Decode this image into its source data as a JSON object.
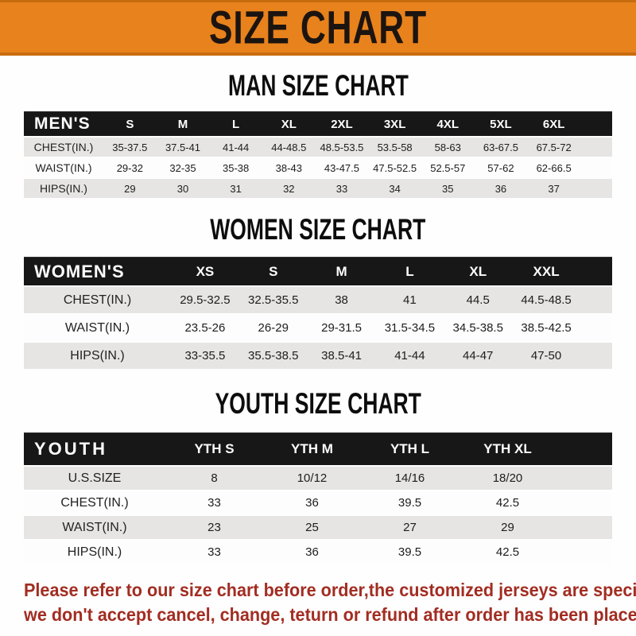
{
  "banner": {
    "title": "SIZE CHART"
  },
  "colors": {
    "banner_orange": "#e8821c",
    "table_header_black": "#171717",
    "row_gray": "#e6e5e3",
    "row_white": "#fdfdfd",
    "footer_red": "#a22d22"
  },
  "sections": [
    {
      "id": "men",
      "title": "MAN SIZE CHART",
      "corner_label": "MEN'S",
      "columns": [
        "S",
        "M",
        "L",
        "XL",
        "2XL",
        "3XL",
        "4XL",
        "5XL",
        "6XL"
      ],
      "rows": [
        {
          "label": "CHEST(IN.)",
          "values": [
            "35-37.5",
            "37.5-41",
            "41-44",
            "44-48.5",
            "48.5-53.5",
            "53.5-58",
            "58-63",
            "63-67.5",
            "67.5-72"
          ]
        },
        {
          "label": "WAIST(IN.)",
          "values": [
            "29-32",
            "32-35",
            "35-38",
            "38-43",
            "43-47.5",
            "47.5-52.5",
            "52.5-57",
            "57-62",
            "62-66.5"
          ]
        },
        {
          "label": "HIPS(IN.)",
          "values": [
            "29",
            "30",
            "31",
            "32",
            "33",
            "34",
            "35",
            "36",
            "37"
          ]
        }
      ]
    },
    {
      "id": "women",
      "title": "WOMEN SIZE CHART",
      "corner_label": "WOMEN'S",
      "columns": [
        "XS",
        "S",
        "M",
        "L",
        "XL",
        "XXL"
      ],
      "rows": [
        {
          "label": "CHEST(IN.)",
          "values": [
            "29.5-32.5",
            "32.5-35.5",
            "38",
            "41",
            "44.5",
            "44.5-48.5"
          ]
        },
        {
          "label": "WAIST(IN.)",
          "values": [
            "23.5-26",
            "26-29",
            "29-31.5",
            "31.5-34.5",
            "34.5-38.5",
            "38.5-42.5"
          ]
        },
        {
          "label": "HIPS(IN.)",
          "values": [
            "33-35.5",
            "35.5-38.5",
            "38.5-41",
            "41-44",
            "44-47",
            "47-50"
          ]
        }
      ]
    },
    {
      "id": "youth",
      "title": "YOUTH SIZE CHART",
      "corner_label": "YOUTH",
      "columns": [
        "YTH S",
        "YTH M",
        "YTH L",
        "YTH XL"
      ],
      "rows": [
        {
          "label": "U.S.SIZE",
          "values": [
            "8",
            "10/12",
            "14/16",
            "18/20"
          ]
        },
        {
          "label": "CHEST(IN.)",
          "values": [
            "33",
            "36",
            "39.5",
            "42.5"
          ]
        },
        {
          "label": "WAIST(IN.)",
          "values": [
            "23",
            "25",
            "27",
            "29"
          ]
        },
        {
          "label": "HIPS(IN.)",
          "values": [
            "33",
            "36",
            "39.5",
            "42.5"
          ]
        }
      ]
    }
  ],
  "footer": {
    "line1": "Please refer to our size chart before order,the customized jerseys are special products,",
    "line2": "we don't accept cancel, change, teturn or refund after order has been placed!"
  }
}
